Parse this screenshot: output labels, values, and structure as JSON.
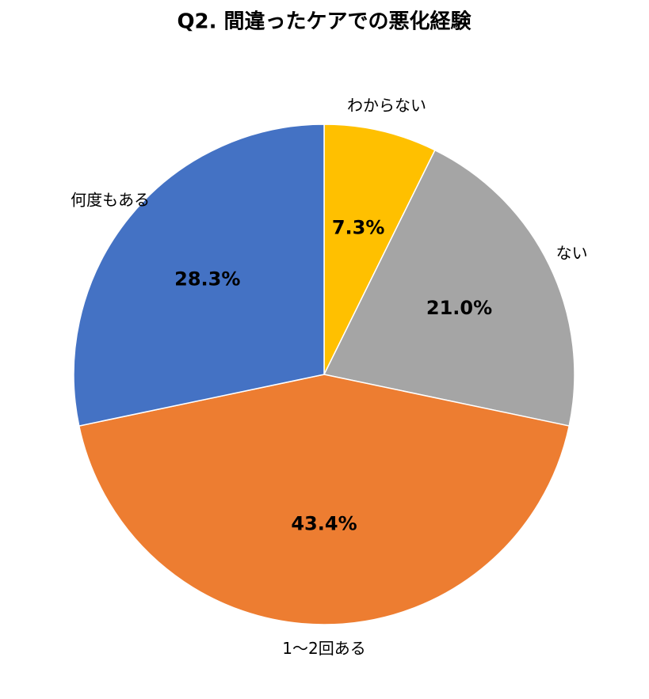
{
  "chart_data": {
    "type": "pie",
    "title": "Q2. 間違ったケアでの悪化経験",
    "categories": [
      "わからない",
      "ない",
      "1〜2回ある",
      "何度もある"
    ],
    "values": [
      7.3,
      21.0,
      43.4,
      28.3
    ],
    "value_labels": [
      "7.3%",
      "21.0%",
      "43.4%",
      "28.3%"
    ],
    "colors": [
      "#FFC000",
      "#A5A5A5",
      "#ED7D31",
      "#4472C4"
    ]
  }
}
